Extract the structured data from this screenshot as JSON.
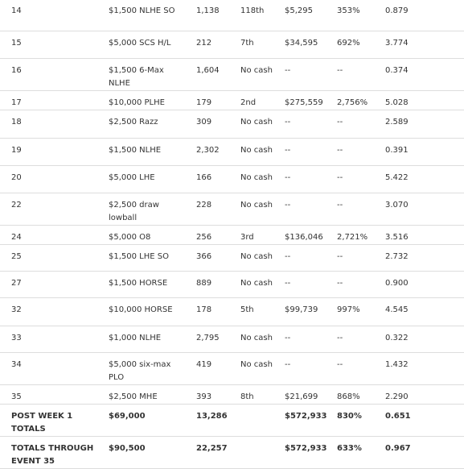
{
  "table": {
    "rows": [
      [
        "14",
        "$1,500 NLHE SO",
        "1,138",
        "118th",
        "$5,295",
        "353%",
        "0.879"
      ],
      [
        "15",
        "$5,000 SCS H/L",
        "212",
        "7th",
        "$34,595",
        "692%",
        "3.774"
      ],
      [
        "16",
        "$1,500 6-Max NLHE",
        "1,604",
        "No cash",
        "--",
        "--",
        "0.374"
      ],
      [
        "17",
        "$10,000 PLHE",
        "179",
        "2nd",
        "$275,559",
        "2,756%",
        "5.028"
      ],
      [
        "18",
        "$2,500 Razz",
        "309",
        "No cash",
        "--",
        "--",
        "2.589"
      ],
      [
        "19",
        "$1,500 NLHE",
        "2,302",
        "No cash",
        "--",
        "--",
        "0.391"
      ],
      [
        "20",
        "$5,000 LHE",
        "166",
        "No cash",
        "--",
        "--",
        "5.422"
      ],
      [
        "22",
        "$2,500 draw lowball",
        "228",
        "No cash",
        "--",
        "--",
        "3.070"
      ],
      [
        "24",
        "$5,000 O8",
        "256",
        "3rd",
        "$136,046",
        "2,721%",
        "3.516"
      ],
      [
        "25",
        "$1,500 LHE SO",
        "366",
        "No cash",
        "--",
        "--",
        "2.732"
      ],
      [
        "27",
        "$1,500 HORSE",
        "889",
        "No cash",
        "--",
        "--",
        "0.900"
      ],
      [
        "32",
        "$10,000 HORSE",
        "178",
        "5th",
        "$99,739",
        "997%",
        "4.545"
      ],
      [
        "33",
        "$1,000 NLHE",
        "2,795",
        "No cash",
        "--",
        "--",
        "0.322"
      ],
      [
        "34",
        "$5,000 six-max PLO",
        "419",
        "No cash",
        "--",
        "--",
        "1.432"
      ],
      [
        "35",
        "$2,500 MHE",
        "393",
        "8th",
        "$21,699",
        "868%",
        "2.290"
      ],
      [
        "POST WEEK 1 TOTALS",
        "$69,000",
        "13,286",
        null,
        "$572,933",
        "830%",
        "0.651"
      ],
      [
        "TOTALS THROUGH EVENT 35",
        "$90,500",
        "22,257",
        null,
        "$572,933",
        "633%",
        "0.967"
      ]
    ]
  }
}
